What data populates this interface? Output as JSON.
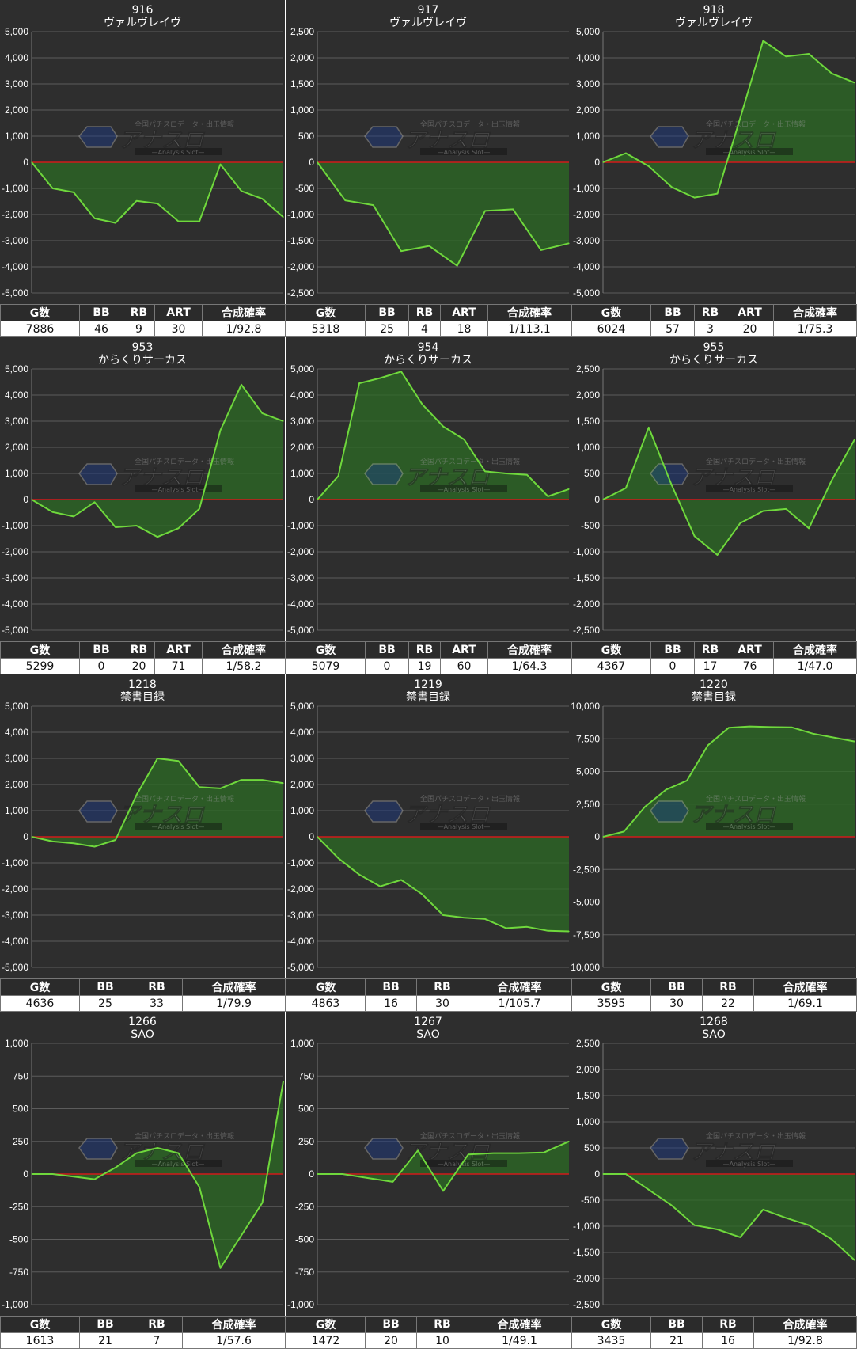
{
  "colors": {
    "panel_bg": "#2e2e2e",
    "grid": "#5c5c5c",
    "zero_line": "#d21a1a",
    "line": "#6fd83c",
    "fill": "#2c6b24",
    "tick_text": "#ffffff",
    "title_text": "#ffffff"
  },
  "watermark": {
    "brand": "アナスロ",
    "tagline": "全国パチスロデータ・出玉情報",
    "sub": "—Analysis Slot—"
  },
  "chart_data": [
    {
      "type": "area",
      "title": "916",
      "subtitle": "ヴァルヴレイヴ",
      "ylim": [
        -5000,
        5000
      ],
      "yticks": [
        5000,
        4000,
        3000,
        2000,
        1000,
        0,
        -1000,
        -2000,
        -3000,
        -4000,
        -5000
      ],
      "values": [
        0,
        -1000,
        -1150,
        -2150,
        -2320,
        -1480,
        -1580,
        -2260,
        -2260,
        -80,
        -1100,
        -1400,
        -2100
      ],
      "headers": [
        "G数",
        "BB",
        "RB",
        "ART",
        "合成確率"
      ],
      "stats": [
        "7886",
        "46",
        "9",
        "30",
        "1/92.8"
      ]
    },
    {
      "type": "area",
      "title": "917",
      "subtitle": "ヴァルヴレイヴ",
      "ylim": [
        -2500,
        2500
      ],
      "yticks": [
        2500,
        2000,
        1500,
        1000,
        500,
        0,
        -500,
        -1000,
        -1500,
        -2000,
        -2500
      ],
      "values": [
        0,
        -730,
        -820,
        -1700,
        -1600,
        -1980,
        -930,
        -900,
        -1680,
        -1550
      ],
      "headers": [
        "G数",
        "BB",
        "RB",
        "ART",
        "合成確率"
      ],
      "stats": [
        "5318",
        "25",
        "4",
        "18",
        "1/113.1"
      ]
    },
    {
      "type": "area",
      "title": "918",
      "subtitle": "ヴァルヴレイヴ",
      "ylim": [
        -5000,
        5000
      ],
      "yticks": [
        5000,
        4000,
        3000,
        2000,
        1000,
        0,
        -1000,
        -2000,
        -3000,
        -4000,
        -5000
      ],
      "values": [
        0,
        350,
        -150,
        -950,
        -1350,
        -1200,
        1700,
        4650,
        4050,
        4150,
        3400,
        3050
      ],
      "headers": [
        "G数",
        "BB",
        "RB",
        "ART",
        "合成確率"
      ],
      "stats": [
        "6024",
        "57",
        "3",
        "20",
        "1/75.3"
      ]
    },
    {
      "type": "area",
      "title": "953",
      "subtitle": "からくりサーカス",
      "ylim": [
        -5000,
        5000
      ],
      "yticks": [
        5000,
        4000,
        3000,
        2000,
        1000,
        0,
        -1000,
        -2000,
        -3000,
        -4000,
        -5000
      ],
      "values": [
        0,
        -480,
        -650,
        -100,
        -1060,
        -1000,
        -1430,
        -1100,
        -350,
        2650,
        4400,
        3300,
        3000
      ],
      "headers": [
        "G数",
        "BB",
        "RB",
        "ART",
        "合成確率"
      ],
      "stats": [
        "5299",
        "0",
        "20",
        "71",
        "1/58.2"
      ]
    },
    {
      "type": "area",
      "title": "954",
      "subtitle": "からくりサーカス",
      "ylim": [
        -5000,
        5000
      ],
      "yticks": [
        5000,
        4000,
        3000,
        2000,
        1000,
        0,
        -1000,
        -2000,
        -3000,
        -4000,
        -5000
      ],
      "values": [
        0,
        900,
        4450,
        4650,
        4900,
        3650,
        2800,
        2300,
        1080,
        1000,
        950,
        120,
        400
      ],
      "headers": [
        "G数",
        "BB",
        "RB",
        "ART",
        "合成確率"
      ],
      "stats": [
        "5079",
        "0",
        "19",
        "60",
        "1/64.3"
      ]
    },
    {
      "type": "area",
      "title": "955",
      "subtitle": "からくりサーカス",
      "ylim": [
        -2500,
        2500
      ],
      "yticks": [
        2500,
        2000,
        1500,
        1000,
        500,
        0,
        -500,
        -1000,
        -1500,
        -2000,
        -2500
      ],
      "values": [
        0,
        220,
        1380,
        280,
        -700,
        -1060,
        -450,
        -220,
        -180,
        -550,
        370,
        1150
      ],
      "headers": [
        "G数",
        "BB",
        "RB",
        "ART",
        "合成確率"
      ],
      "stats": [
        "4367",
        "0",
        "17",
        "76",
        "1/47.0"
      ]
    },
    {
      "type": "area",
      "title": "1218",
      "subtitle": "禁書目録",
      "ylim": [
        -5000,
        5000
      ],
      "yticks": [
        5000,
        4000,
        3000,
        2000,
        1000,
        0,
        -1000,
        -2000,
        -3000,
        -4000,
        -5000
      ],
      "values": [
        0,
        -180,
        -250,
        -380,
        -120,
        1600,
        3000,
        2900,
        1900,
        1850,
        2180,
        2180,
        2050
      ],
      "headers": [
        "G数",
        "BB",
        "RB",
        "合成確率"
      ],
      "stats": [
        "4636",
        "25",
        "33",
        "1/79.9"
      ]
    },
    {
      "type": "area",
      "title": "1219",
      "subtitle": "禁書目録",
      "ylim": [
        -5000,
        5000
      ],
      "yticks": [
        5000,
        4000,
        3000,
        2000,
        1000,
        0,
        -1000,
        -2000,
        -3000,
        -4000,
        -5000
      ],
      "values": [
        0,
        -820,
        -1450,
        -1900,
        -1650,
        -2200,
        -3000,
        -3100,
        -3150,
        -3500,
        -3450,
        -3600,
        -3620
      ],
      "headers": [
        "G数",
        "BB",
        "RB",
        "合成確率"
      ],
      "stats": [
        "4863",
        "16",
        "30",
        "1/105.7"
      ]
    },
    {
      "type": "area",
      "title": "1220",
      "subtitle": "禁書目録",
      "ylim": [
        -10000,
        10000
      ],
      "yticks": [
        10000,
        7500,
        5000,
        2500,
        0,
        -2500,
        -5000,
        -7500,
        -10000
      ],
      "values": [
        0,
        400,
        2300,
        3600,
        4300,
        7000,
        8350,
        8450,
        8400,
        8380,
        7900,
        7600,
        7300
      ],
      "headers": [
        "G数",
        "BB",
        "RB",
        "合成確率"
      ],
      "stats": [
        "3595",
        "30",
        "22",
        "1/69.1"
      ]
    },
    {
      "type": "area",
      "title": "1266",
      "subtitle": "SAO",
      "ylim": [
        -1000,
        1000
      ],
      "yticks": [
        1000,
        750,
        500,
        250,
        0,
        -250,
        -500,
        -750,
        -1000
      ],
      "values": [
        0,
        0,
        -20,
        -40,
        50,
        160,
        200,
        160,
        -100,
        -720,
        -470,
        -220,
        710
      ],
      "headers": [
        "G数",
        "BB",
        "RB",
        "合成確率"
      ],
      "stats": [
        "1613",
        "21",
        "7",
        "1/57.6"
      ]
    },
    {
      "type": "area",
      "title": "1267",
      "subtitle": "SAO",
      "ylim": [
        -1000,
        1000
      ],
      "yticks": [
        1000,
        750,
        500,
        250,
        0,
        -250,
        -500,
        -750,
        -1000
      ],
      "values": [
        0,
        0,
        -30,
        -60,
        180,
        -130,
        150,
        160,
        160,
        165,
        250
      ],
      "headers": [
        "G数",
        "BB",
        "RB",
        "合成確率"
      ],
      "stats": [
        "1472",
        "20",
        "10",
        "1/49.1"
      ]
    },
    {
      "type": "area",
      "title": "1268",
      "subtitle": "SAO",
      "ylim": [
        -2500,
        2500
      ],
      "yticks": [
        2500,
        2000,
        1500,
        1000,
        500,
        0,
        -500,
        -1000,
        -1500,
        -2000,
        -2500
      ],
      "values": [
        0,
        0,
        -300,
        -600,
        -980,
        -1060,
        -1210,
        -680,
        -840,
        -980,
        -1250,
        -1650
      ],
      "headers": [
        "G数",
        "BB",
        "RB",
        "合成確率"
      ],
      "stats": [
        "3435",
        "21",
        "16",
        "1/92.8"
      ]
    }
  ]
}
